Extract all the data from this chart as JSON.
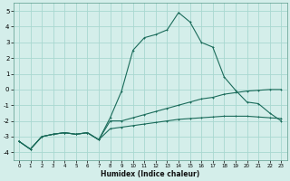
{
  "xlabel": "Humidex (Indice chaleur)",
  "xlim": [
    -0.5,
    23.5
  ],
  "ylim": [
    -4.5,
    5.5
  ],
  "yticks": [
    -4,
    -3,
    -2,
    -1,
    0,
    1,
    2,
    3,
    4,
    5
  ],
  "xticks": [
    0,
    1,
    2,
    3,
    4,
    5,
    6,
    7,
    8,
    9,
    10,
    11,
    12,
    13,
    14,
    15,
    16,
    17,
    18,
    19,
    20,
    21,
    22,
    23
  ],
  "bg_color": "#d4eeea",
  "grid_color": "#a8d8d0",
  "line_color": "#1a6b5a",
  "line1_y": [
    -3.3,
    -3.8,
    -3.0,
    -2.85,
    -2.75,
    -2.85,
    -2.75,
    -3.2,
    -1.8,
    -0.1,
    2.5,
    3.3,
    3.5,
    3.8,
    4.9,
    4.3,
    3.0,
    2.7,
    0.8,
    -0.05,
    -0.8,
    -0.9,
    -1.5,
    -2.0
  ],
  "line2_y": [
    -3.3,
    -3.8,
    -3.0,
    -2.85,
    -2.75,
    -2.85,
    -2.75,
    -3.2,
    -2.0,
    -2.0,
    -1.8,
    -1.6,
    -1.4,
    -1.2,
    -1.0,
    -0.8,
    -0.6,
    -0.5,
    -0.3,
    -0.2,
    -0.1,
    -0.05,
    0.0,
    0.0
  ],
  "line3_y": [
    -3.3,
    -3.8,
    -3.0,
    -2.85,
    -2.75,
    -2.85,
    -2.75,
    -3.2,
    -2.5,
    -2.4,
    -2.3,
    -2.2,
    -2.1,
    -2.0,
    -1.9,
    -1.85,
    -1.8,
    -1.75,
    -1.7,
    -1.7,
    -1.7,
    -1.75,
    -1.8,
    -1.85
  ]
}
